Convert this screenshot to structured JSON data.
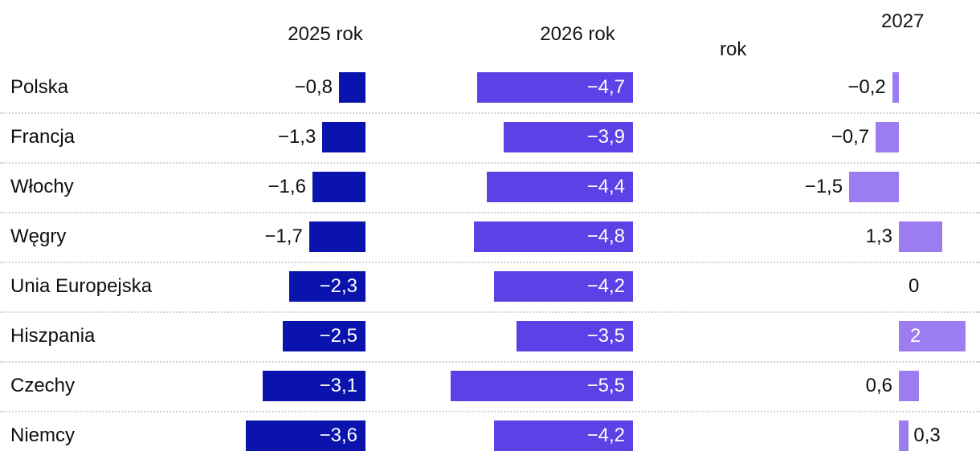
{
  "headers": {
    "h2025": "2025 rok",
    "h2026": "2026 rok",
    "h2027_rok": "rok",
    "h2027_year": "2027"
  },
  "chart_data": {
    "type": "bar",
    "orientation": "horizontal",
    "title": "",
    "value_axis": "hidden",
    "grid": "dotted-row-separators",
    "legend_position": "column-headers-top",
    "categories": [
      "Polska",
      "Francja",
      "Włochy",
      "Węgry",
      "Unia Europejska",
      "Hiszpania",
      "Czechy",
      "Niemcy"
    ],
    "series": [
      {
        "name": "2025 rok",
        "color": "#0a13ae",
        "values": [
          -0.8,
          -1.3,
          -1.6,
          -1.7,
          -2.3,
          -2.5,
          -3.1,
          -3.6
        ],
        "labels": [
          "−0,8",
          "−1,3",
          "−1,6",
          "−1,7",
          "−2,3",
          "−2,5",
          "−3,1",
          "−3,6"
        ],
        "label_pos": [
          "outside-left",
          "outside-left",
          "outside-left",
          "outside-left",
          "inside",
          "inside",
          "inside",
          "inside"
        ]
      },
      {
        "name": "2026 rok",
        "color": "#5b42e6",
        "values": [
          -4.7,
          -3.9,
          -4.4,
          -4.8,
          -4.2,
          -3.5,
          -5.5,
          -4.2
        ],
        "labels": [
          "−4,7",
          "−3,9",
          "−4,4",
          "−4,8",
          "−4,2",
          "−3,5",
          "−5,5",
          "−4,2"
        ],
        "label_pos": [
          "inside",
          "inside",
          "inside",
          "inside",
          "inside",
          "inside",
          "inside",
          "inside"
        ]
      },
      {
        "name": "2027 rok",
        "color": "#9c7cf1",
        "values": [
          -0.2,
          -0.7,
          -1.5,
          1.3,
          0,
          2,
          0.6,
          0.3
        ],
        "labels": [
          "−0,2",
          "−0,7",
          "−1,5",
          "1,3",
          "0",
          "2",
          "0,6",
          "0,3"
        ],
        "label_pos": [
          "outside-left",
          "outside-left",
          "outside-left",
          "outside-left",
          "bare",
          "inside",
          "outside-left",
          "outside-right"
        ]
      }
    ]
  }
}
